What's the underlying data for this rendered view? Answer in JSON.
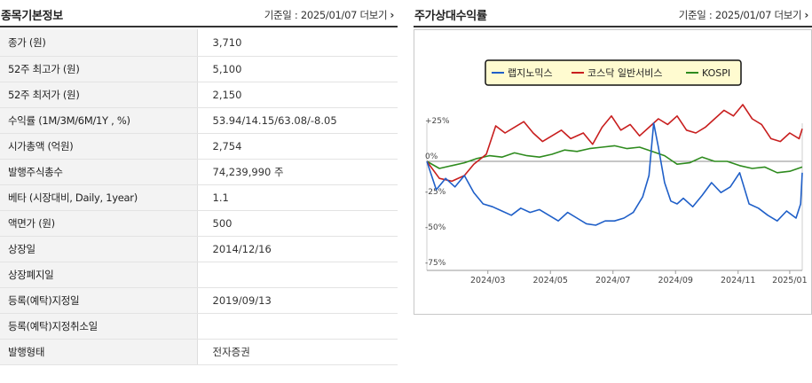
{
  "left": {
    "title": "종목기본정보",
    "base_date_label": "기준일 : 2025/01/07",
    "more_label": "더보기",
    "rows": [
      {
        "label": "종가 (원)",
        "value": "3,710"
      },
      {
        "label": "52주 최고가 (원)",
        "value": "5,100"
      },
      {
        "label": "52주 최저가 (원)",
        "value": "2,150"
      },
      {
        "label": "수익률 (1M/3M/6M/1Y , %)",
        "value": "53.94/14.15/63.08/-8.05"
      },
      {
        "label": "시가총액 (억원)",
        "value": "2,754"
      },
      {
        "label": "발행주식총수",
        "value": "74,239,990 주"
      },
      {
        "label": "베타 (시장대비, Daily, 1year)",
        "value": "1.1"
      },
      {
        "label": "액면가 (원)",
        "value": "500"
      },
      {
        "label": "상장일",
        "value": "2014/12/16"
      },
      {
        "label": "상장폐지일",
        "value": ""
      },
      {
        "label": "등록(예탁)지정일",
        "value": "2019/09/13"
      },
      {
        "label": "등록(예탁)지정취소일",
        "value": ""
      },
      {
        "label": "발행형태",
        "value": "전자증권"
      }
    ]
  },
  "right": {
    "title": "주가상대수익률",
    "base_date_label": "기준일 : 2025/01/07",
    "more_label": "더보기"
  },
  "chart_data": {
    "type": "line",
    "title": "",
    "xlabel": "",
    "ylabel": "",
    "y_unit": "%",
    "ylim": [
      -75,
      50
    ],
    "y_ticks": [
      25,
      0,
      -25,
      -50,
      -75
    ],
    "y_tick_labels": [
      "+25%",
      "0%",
      "-25%",
      "-50%",
      "-75%"
    ],
    "x_ticks": [
      "2024/03",
      "2024/05",
      "2024/07",
      "2024/09",
      "2024/11",
      "2025/01"
    ],
    "x_tick_positions": [
      1.95,
      3.95,
      5.95,
      7.95,
      9.95,
      11.6
    ],
    "x_range": [
      0,
      12
    ],
    "grid": false,
    "legend_position": "top-center",
    "colors": {
      "랩지노믹스": "#1f5fc8",
      "코스닥 일반서비스": "#c81e1e",
      "KOSPI": "#2e8b1e"
    },
    "series": [
      {
        "name": "랩지노믹스",
        "x": [
          0,
          0.3,
          0.6,
          0.9,
          1.2,
          1.5,
          1.8,
          2.1,
          2.4,
          2.7,
          3.0,
          3.3,
          3.6,
          3.9,
          4.2,
          4.5,
          4.8,
          5.1,
          5.4,
          5.7,
          6.0,
          6.3,
          6.6,
          6.9,
          7.1,
          7.25,
          7.4,
          7.6,
          7.8,
          8.0,
          8.2,
          8.5,
          8.8,
          9.1,
          9.4,
          9.7,
          10.0,
          10.3,
          10.6,
          10.9,
          11.2,
          11.5,
          11.8,
          11.95,
          12.0
        ],
        "y": [
          0,
          -20,
          -12,
          -18,
          -10,
          -22,
          -30,
          -32,
          -35,
          -38,
          -33,
          -36,
          -34,
          -38,
          -42,
          -36,
          -40,
          -44,
          -45,
          -42,
          -42,
          -40,
          -36,
          -25,
          -10,
          27,
          10,
          -15,
          -28,
          -30,
          -26,
          -32,
          -24,
          -15,
          -22,
          -18,
          -8,
          -30,
          -33,
          -38,
          -42,
          -35,
          -40,
          -30,
          -8
        ]
      },
      {
        "name": "코스닥 일반서비스",
        "x": [
          0,
          0.4,
          0.8,
          1.2,
          1.5,
          1.9,
          2.2,
          2.5,
          2.8,
          3.1,
          3.4,
          3.7,
          4.0,
          4.3,
          4.6,
          5.0,
          5.3,
          5.6,
          5.9,
          6.2,
          6.5,
          6.8,
          7.1,
          7.4,
          7.7,
          8.0,
          8.3,
          8.6,
          8.9,
          9.2,
          9.5,
          9.8,
          10.1,
          10.4,
          10.7,
          11.0,
          11.3,
          11.6,
          11.9,
          12.0
        ],
        "y": [
          0,
          -12,
          -14,
          -10,
          -2,
          5,
          25,
          20,
          24,
          28,
          20,
          14,
          18,
          22,
          16,
          20,
          12,
          24,
          32,
          22,
          26,
          18,
          24,
          30,
          26,
          32,
          22,
          20,
          24,
          30,
          36,
          32,
          40,
          30,
          26,
          16,
          14,
          20,
          16,
          23
        ]
      },
      {
        "name": "KOSPI",
        "x": [
          0,
          0.4,
          0.8,
          1.2,
          1.6,
          2.0,
          2.4,
          2.8,
          3.2,
          3.6,
          4.0,
          4.4,
          4.8,
          5.2,
          5.6,
          6.0,
          6.4,
          6.8,
          7.2,
          7.6,
          8.0,
          8.4,
          8.8,
          9.2,
          9.6,
          10.0,
          10.4,
          10.8,
          11.2,
          11.6,
          12.0
        ],
        "y": [
          0,
          -5,
          -3,
          -1,
          2,
          4,
          3,
          6,
          4,
          3,
          5,
          8,
          7,
          9,
          10,
          11,
          9,
          10,
          7,
          4,
          -2,
          -1,
          3,
          0,
          0,
          -3,
          -5,
          -4,
          -8,
          -7,
          -4
        ]
      }
    ]
  }
}
